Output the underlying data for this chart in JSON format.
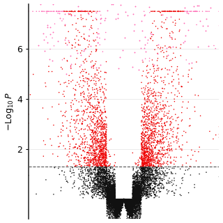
{
  "n_points": 15000,
  "xlim": [
    -5.5,
    5.5
  ],
  "ylim": [
    -0.8,
    7.8
  ],
  "yticks": [
    2,
    4,
    6
  ],
  "threshold_y": 1.3,
  "ylabel": "$-\\mathrm{Log}_{10}\\,P$",
  "background_color": "#ffffff",
  "grid_color": "#cccccc",
  "color_significant": "#ee0000",
  "color_not_significant": "#111111",
  "color_outlier": "#ff69b4",
  "point_size": 1.2,
  "dashed_line_color": "#555555",
  "seed": 7
}
